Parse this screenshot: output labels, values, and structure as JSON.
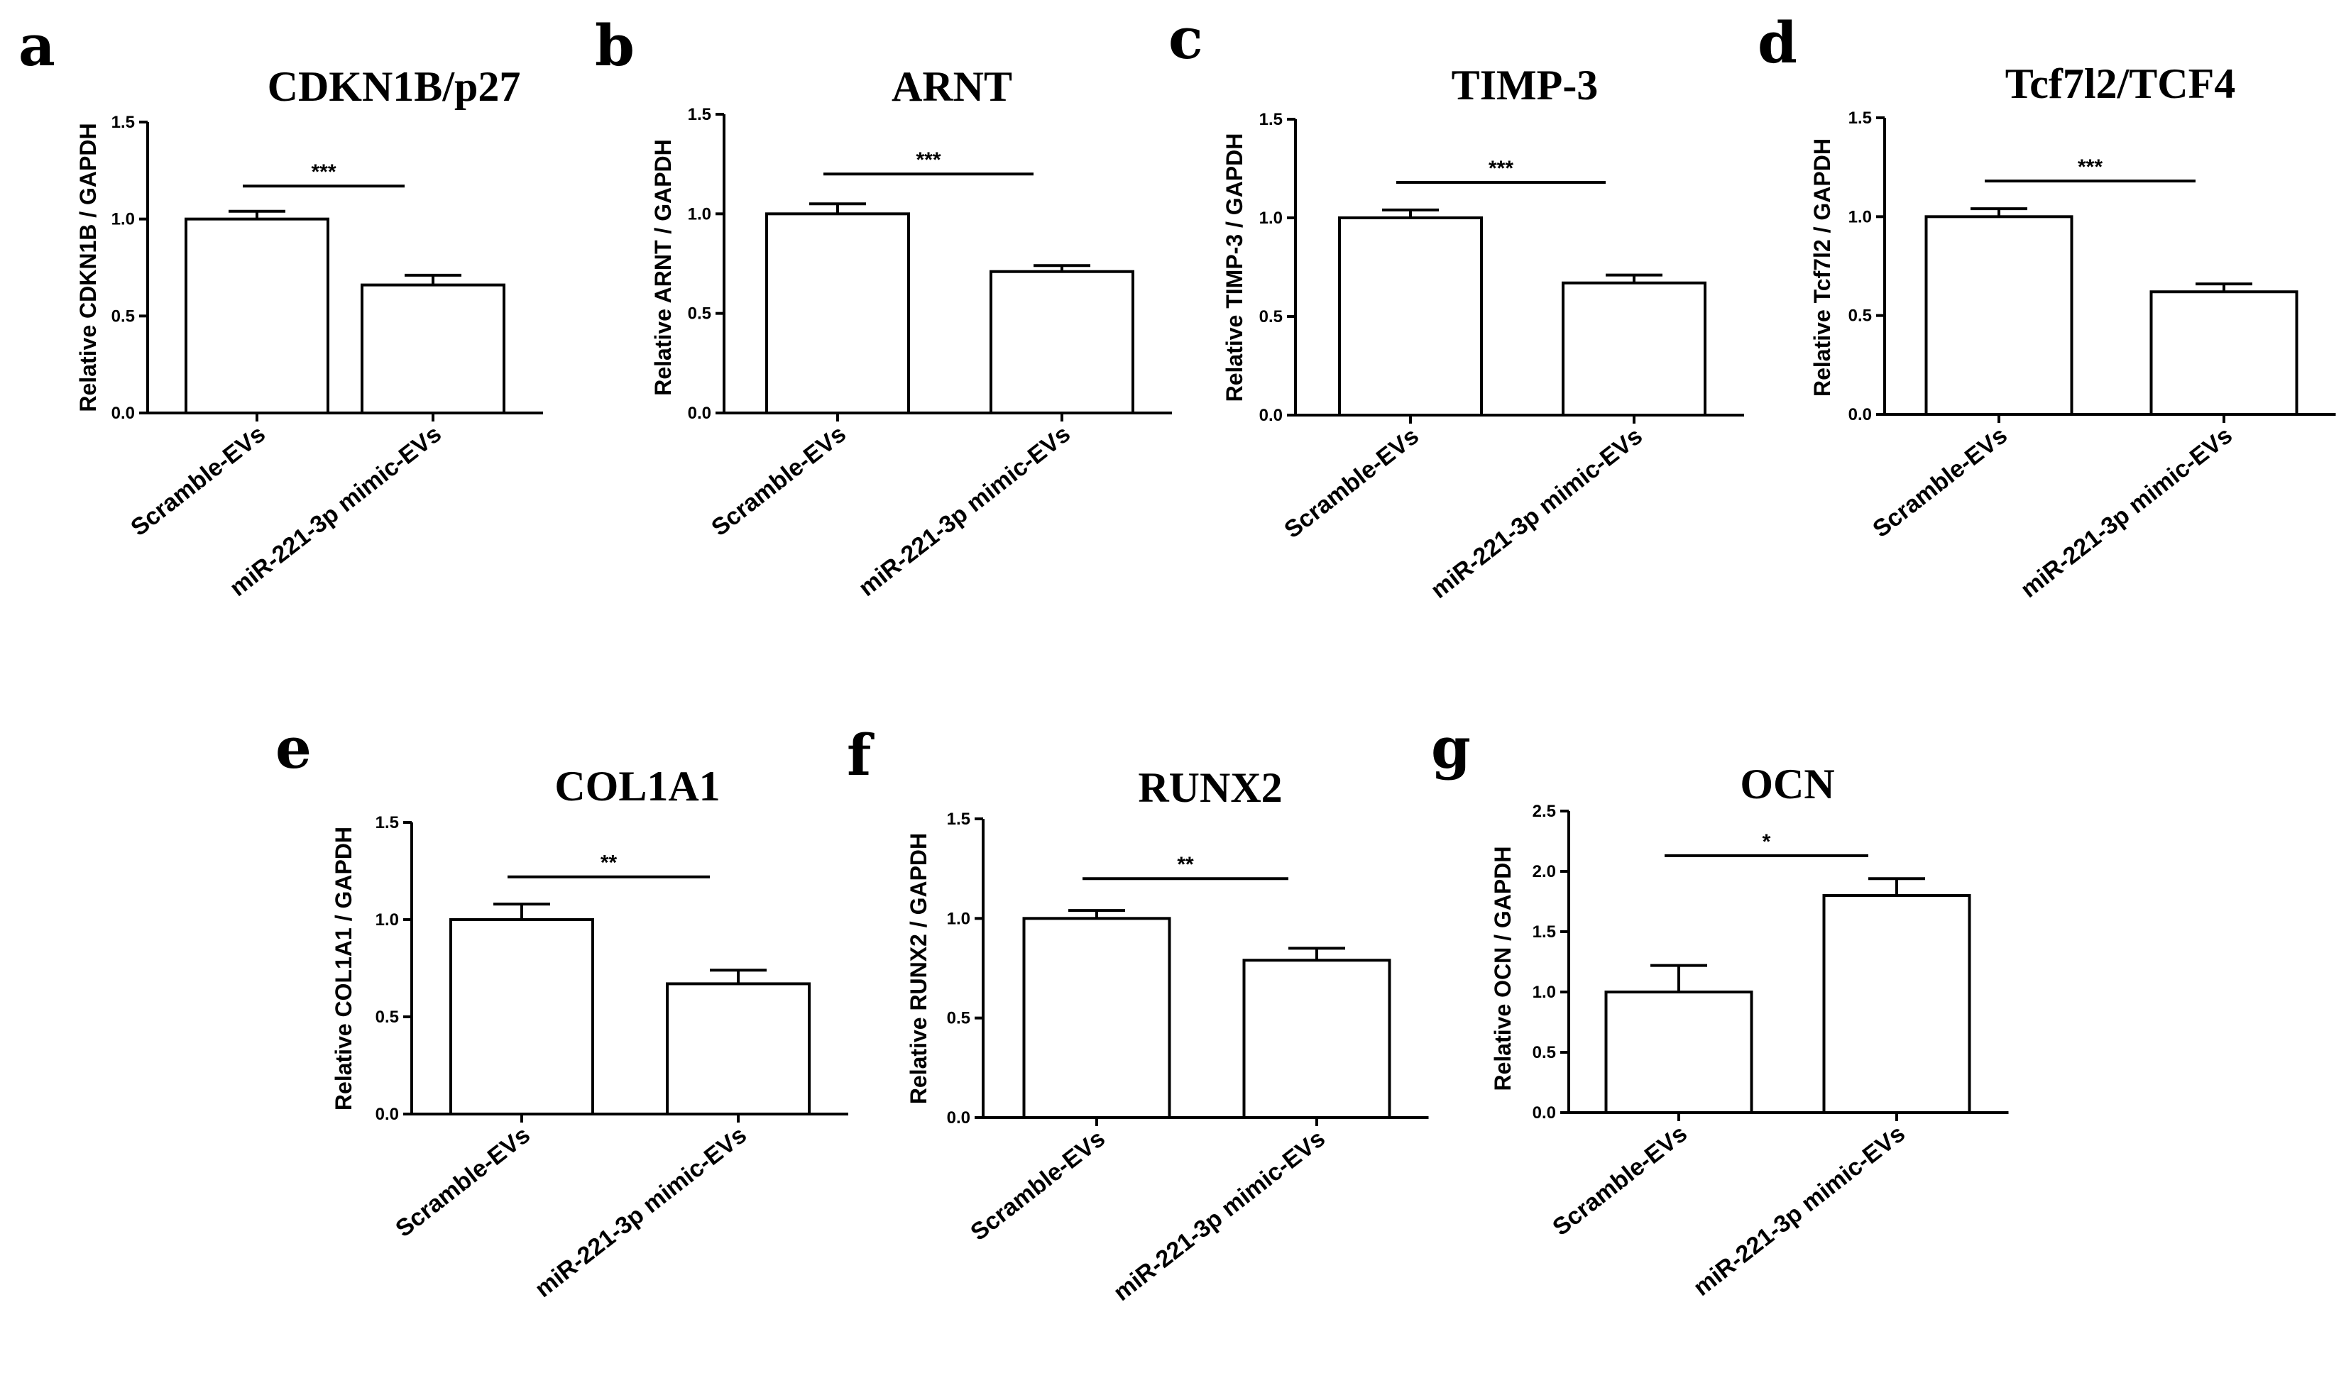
{
  "chart_data": [
    {
      "panel": "a",
      "type": "bar",
      "title": "CDKN1B/p27",
      "ylabel": "Relative CDKN1B / GAPDH",
      "categories": [
        "Scramble-EVs",
        "miR-221-3p mimic-EVs"
      ],
      "values": [
        1.0,
        0.66
      ],
      "errors": [
        0.04,
        0.05
      ],
      "ylim": [
        0,
        1.5
      ],
      "yticks": [
        0.0,
        0.5,
        1.0,
        1.5
      ],
      "ytick_labels": [
        "0.0",
        "0.5",
        "1.0",
        "1.5"
      ],
      "significance": "***",
      "sig_y": 1.17
    },
    {
      "panel": "b",
      "type": "bar",
      "title": "ARNT",
      "ylabel": "Relative ARNT / GAPDH",
      "categories": [
        "Scramble-EVs",
        "miR-221-3p mimic-EVs"
      ],
      "values": [
        1.0,
        0.71
      ],
      "errors": [
        0.05,
        0.03
      ],
      "ylim": [
        0,
        1.5
      ],
      "yticks": [
        0.0,
        0.5,
        1.0,
        1.5
      ],
      "ytick_labels": [
        "0.0",
        "0.5",
        "1.0",
        "1.5"
      ],
      "significance": "***",
      "sig_y": 1.2
    },
    {
      "panel": "c",
      "type": "bar",
      "title": "TIMP-3",
      "ylabel": "Relative TIMP-3 / GAPDH",
      "categories": [
        "Scramble-EVs",
        "miR-221-3p mimic-EVs"
      ],
      "values": [
        1.0,
        0.67
      ],
      "errors": [
        0.04,
        0.04
      ],
      "ylim": [
        0,
        1.5
      ],
      "yticks": [
        0.0,
        0.5,
        1.0,
        1.5
      ],
      "ytick_labels": [
        "0.0",
        "0.5",
        "1.0",
        "1.5"
      ],
      "significance": "***",
      "sig_y": 1.18
    },
    {
      "panel": "d",
      "type": "bar",
      "title": "Tcf7l2/TCF4",
      "ylabel": "Relative Tcf7l2 / GAPDH",
      "categories": [
        "Scramble-EVs",
        "miR-221-3p mimic-EVs"
      ],
      "values": [
        1.0,
        0.62
      ],
      "errors": [
        0.04,
        0.04
      ],
      "ylim": [
        0,
        1.5
      ],
      "yticks": [
        0.0,
        0.5,
        1.0,
        1.5
      ],
      "ytick_labels": [
        "0.0",
        "0.5",
        "1.0",
        "1.5"
      ],
      "significance": "***",
      "sig_y": 1.18
    },
    {
      "panel": "e",
      "type": "bar",
      "title": "COL1A1",
      "ylabel": "Relative COL1A1 / GAPDH",
      "categories": [
        "Scramble-EVs",
        "miR-221-3p mimic-EVs"
      ],
      "values": [
        1.0,
        0.67
      ],
      "errors": [
        0.08,
        0.07
      ],
      "ylim": [
        0,
        1.5
      ],
      "yticks": [
        0.0,
        0.5,
        1.0,
        1.5
      ],
      "ytick_labels": [
        "0.0",
        "0.5",
        "1.0",
        "1.5"
      ],
      "significance": "**",
      "sig_y": 1.22
    },
    {
      "panel": "f",
      "type": "bar",
      "title": "RUNX2",
      "ylabel": "Relative RUNX2 / GAPDH",
      "categories": [
        "Scramble-EVs",
        "miR-221-3p mimic-EVs"
      ],
      "values": [
        1.0,
        0.79
      ],
      "errors": [
        0.04,
        0.06
      ],
      "ylim": [
        0,
        1.5
      ],
      "yticks": [
        0.0,
        0.5,
        1.0,
        1.5
      ],
      "ytick_labels": [
        "0.0",
        "0.5",
        "1.0",
        "1.5"
      ],
      "significance": "**",
      "sig_y": 1.2
    },
    {
      "panel": "g",
      "type": "bar",
      "title": "OCN",
      "ylabel": "Relative OCN / GAPDH",
      "categories": [
        "Scramble-EVs",
        "miR-221-3p mimic-EVs"
      ],
      "values": [
        1.0,
        1.8
      ],
      "errors": [
        0.22,
        0.14
      ],
      "ylim": [
        0,
        2.5
      ],
      "yticks": [
        0.0,
        0.5,
        1.0,
        1.5,
        2.0,
        2.5
      ],
      "ytick_labels": [
        "0.0",
        "0.5",
        "1.0",
        "1.5",
        "2.0",
        "2.5"
      ],
      "significance": "*",
      "sig_y": 2.13
    }
  ]
}
